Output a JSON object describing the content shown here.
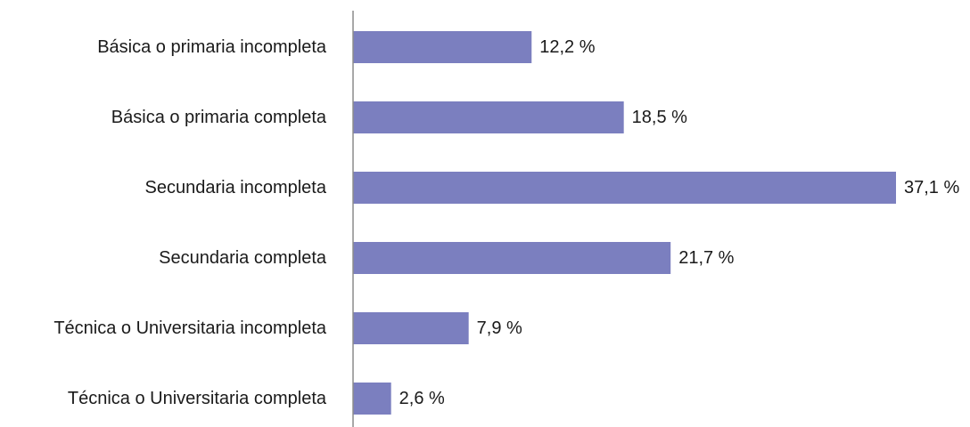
{
  "chart_data": {
    "type": "bar",
    "orientation": "horizontal",
    "categories": [
      "Básica o primaria incompleta",
      "Básica o primaria completa",
      "Secundaria incompleta",
      "Secundaria completa",
      "Técnica o Universitaria incompleta",
      "Técnica o Universitaria completa"
    ],
    "values": [
      12.2,
      18.5,
      37.1,
      21.7,
      7.9,
      2.6
    ],
    "value_labels": [
      "12,2 %",
      "18,5 %",
      "37,1 %",
      "21,7 %",
      "7,9 %",
      "2,6 %"
    ],
    "xlim": [
      0,
      37.1
    ],
    "grid": false,
    "legend": "none",
    "bar_color": "#7b7fbf",
    "axis_color": "#8c8c8c"
  }
}
